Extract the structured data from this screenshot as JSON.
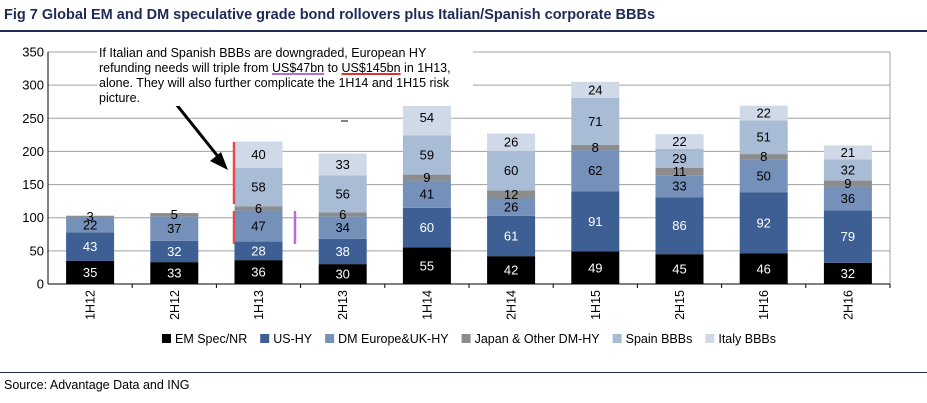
{
  "figure": {
    "title": "Fig 7   Global EM and DM speculative grade bond rollovers plus Italian/Spanish corporate BBBs",
    "source": "Source: Advantage Data and ING"
  },
  "annotation": {
    "line1": "If Italian and Spanish BBBs are downgraded, European HY",
    "line2_pre": "refunding needs will triple from ",
    "line2_a": "US$47bn",
    "line2_mid": " to ",
    "line2_b": "US$145bn",
    "line2_post": " in 1H13,",
    "line3": "alone. They will also further complicate the 1H14 and 1H15 risk",
    "line4": "picture."
  },
  "colors": {
    "em_spec": "#000000",
    "us_hy": "#3d5f93",
    "dm_europe": "#7591ba",
    "japan_other": "#8c8c8c",
    "spain_bbbs": "#a9bcd6",
    "italy_bbbs": "#cfd9e8",
    "grid": "#a0a0a0",
    "marker_red": "#e84848",
    "marker_purple": "#b070d8"
  },
  "chart_data": {
    "type": "bar",
    "stacked": true,
    "categories": [
      "1H12",
      "2H12",
      "1H13",
      "2H13",
      "1H14",
      "2H14",
      "1H15",
      "2H15",
      "1H16",
      "2H16"
    ],
    "ylim": [
      0,
      350
    ],
    "yticks": [
      0,
      50,
      100,
      150,
      200,
      250,
      300,
      350
    ],
    "grid": true,
    "legend_position": "bottom",
    "series": [
      {
        "name": "EM Spec/NR",
        "color": "#000000",
        "label_color": "#ffffff",
        "values": [
          35,
          33,
          36,
          30,
          55,
          42,
          49,
          45,
          46,
          32
        ]
      },
      {
        "name": "US-HY",
        "color": "#3d5f93",
        "label_color": "#ffffff",
        "values": [
          43,
          32,
          28,
          38,
          60,
          61,
          91,
          86,
          92,
          79
        ]
      },
      {
        "name": "DM Europe&UK-HY",
        "color": "#7591ba",
        "label_color": "#000000",
        "values": [
          22,
          37,
          47,
          34,
          41,
          26,
          62,
          33,
          50,
          36
        ]
      },
      {
        "name": "Japan & Other DM-HY",
        "color": "#8c8c8c",
        "label_color": "#000000",
        "values": [
          3,
          5,
          6,
          6,
          9,
          12,
          8,
          11,
          8,
          9
        ]
      },
      {
        "name": "Spain BBBs",
        "color": "#a9bcd6",
        "label_color": "#000000",
        "values": [
          0,
          0,
          58,
          56,
          59,
          60,
          71,
          29,
          51,
          32
        ]
      },
      {
        "name": "Italy BBBs",
        "color": "#cfd9e8",
        "label_color": "#000000",
        "values": [
          0,
          0,
          40,
          33,
          54,
          26,
          24,
          22,
          22,
          21
        ]
      }
    ]
  }
}
